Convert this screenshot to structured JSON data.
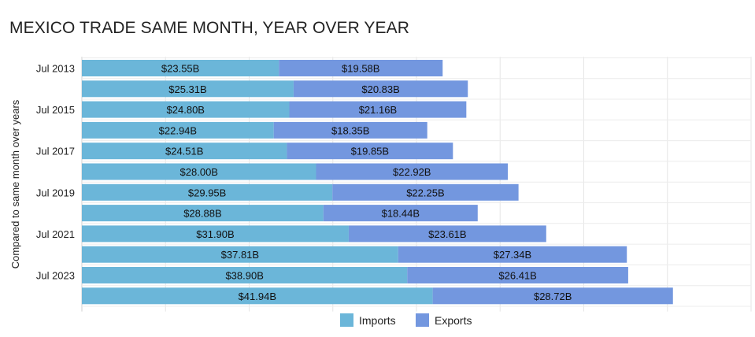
{
  "title": "MEXICO TRADE SAME MONTH, YEAR OVER YEAR",
  "chart_data": {
    "type": "bar",
    "orientation": "horizontal",
    "stacked": true,
    "title": "MEXICO TRADE SAME MONTH, YEAR OVER YEAR",
    "ylabel": "Compared to same month over years",
    "xlabel": "",
    "categories": [
      "Jul 2013",
      "",
      "Jul 2015",
      "",
      "Jul 2017",
      "",
      "Jul 2019",
      "",
      "Jul 2021",
      "",
      "Jul 2023",
      ""
    ],
    "series": [
      {
        "name": "Imports",
        "color": "#6bb6d9",
        "values": [
          23.55,
          25.31,
          24.8,
          22.94,
          24.51,
          28.0,
          29.95,
          28.88,
          31.9,
          37.81,
          38.9,
          41.94
        ],
        "labels": [
          "$23.55B",
          "$25.31B",
          "$24.80B",
          "$22.94B",
          "$24.51B",
          "$28.00B",
          "$29.95B",
          "$28.88B",
          "$31.90B",
          "$37.81B",
          "$38.90B",
          "$41.94B"
        ]
      },
      {
        "name": "Exports",
        "color": "#7397df",
        "values": [
          19.58,
          20.83,
          21.16,
          18.35,
          19.85,
          22.92,
          22.25,
          18.44,
          23.61,
          27.34,
          26.41,
          28.72
        ],
        "labels": [
          "$19.58B",
          "$20.83B",
          "$21.16B",
          "$18.35B",
          "$19.85B",
          "$22.92B",
          "$22.25B",
          "$18.44B",
          "$23.61B",
          "$27.34B",
          "$26.41B",
          "$28.72B"
        ]
      }
    ],
    "xlim": [
      0,
      80
    ],
    "grid": true,
    "legend": "bottom-center"
  }
}
